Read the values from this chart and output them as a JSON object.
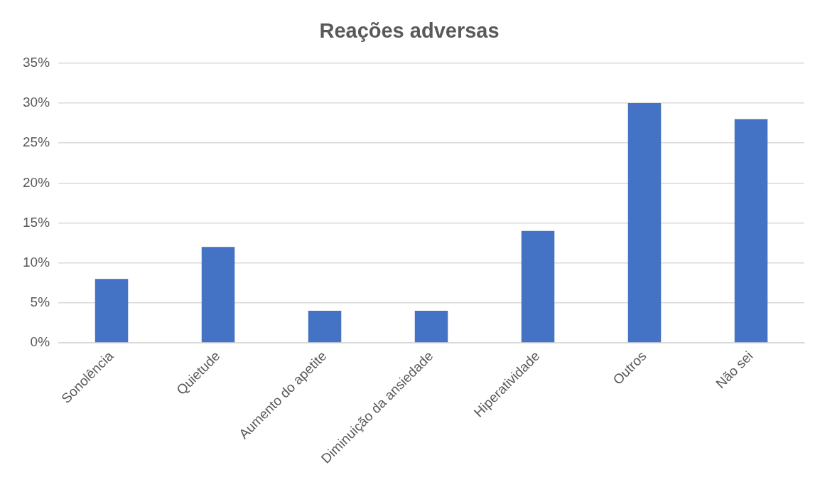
{
  "chart_data": {
    "type": "bar",
    "title": "Reações adversas",
    "categories": [
      "Sonolência",
      "Quietude",
      "Aumento do apetite",
      "Diminuição da ansiedade",
      "Hiperatividade",
      "Outros",
      "Não sei"
    ],
    "values": [
      8,
      12,
      4,
      4,
      14,
      30,
      28
    ],
    "color": "#4472c4",
    "ylim": [
      0,
      35
    ],
    "yticks": [
      {
        "value": 0,
        "label": "0%"
      },
      {
        "value": 5,
        "label": "5%"
      },
      {
        "value": 10,
        "label": "10%"
      },
      {
        "value": 15,
        "label": "15%"
      },
      {
        "value": 20,
        "label": "20%"
      },
      {
        "value": 25,
        "label": "25%"
      },
      {
        "value": 30,
        "label": "30%"
      },
      {
        "value": 35,
        "label": "35%"
      }
    ],
    "grid": "y",
    "legend": false
  }
}
